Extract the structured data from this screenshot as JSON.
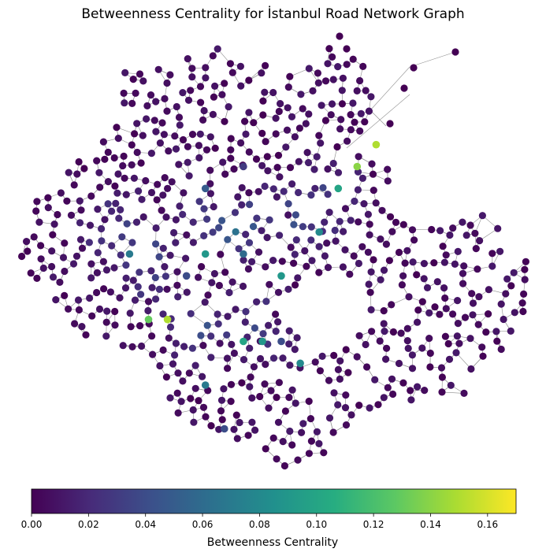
{
  "chart_data": {
    "type": "scatter",
    "title": "Betweenness Centrality for İstanbul Road Network Graph",
    "colorbar": {
      "label": "Betweenness Centrality",
      "range": [
        0,
        0.17
      ],
      "ticks": [
        "0.00",
        "0.02",
        "0.04",
        "0.06",
        "0.08",
        "0.10",
        "0.12",
        "0.14",
        "0.16"
      ],
      "tick_values": [
        0,
        0.02,
        0.04,
        0.06,
        0.08,
        0.1,
        0.12,
        0.14,
        0.16
      ],
      "orientation": "horizontal",
      "placement": "bottom",
      "colormap": "viridis"
    },
    "node_color_low": "#440154",
    "node_color_high": "#fde725",
    "edge_color": "#8c8c8c",
    "axes_visible": false,
    "nodes_note_free": true,
    "nodes": [
      {
        "x": 41.06,
        "y": 29.03,
        "v": 0.14
      },
      {
        "x": 41.07,
        "y": 29.04,
        "v": 0.15
      },
      {
        "x": 41.05,
        "y": 29.02,
        "v": 0.1
      },
      {
        "x": 40.99,
        "y": 28.93,
        "v": 0.15
      },
      {
        "x": 40.99,
        "y": 28.92,
        "v": 0.13
      },
      {
        "x": 40.98,
        "y": 28.97,
        "v": 0.1
      },
      {
        "x": 40.98,
        "y": 28.98,
        "v": 0.09
      },
      {
        "x": 40.97,
        "y": 29.0,
        "v": 0.08
      },
      {
        "x": 41.02,
        "y": 28.95,
        "v": 0.09
      },
      {
        "x": 41.01,
        "y": 28.99,
        "v": 0.09
      },
      {
        "x": 41.03,
        "y": 29.01,
        "v": 0.08
      },
      {
        "x": 41.02,
        "y": 28.91,
        "v": 0.07
      },
      {
        "x": 40.96,
        "y": 28.95,
        "v": 0.07
      },
      {
        "x": 41.02,
        "y": 28.97,
        "v": 0.06
      },
      {
        "x": 41.05,
        "y": 28.95,
        "v": 0.05
      },
      {
        "x": 41.01,
        "y": 28.94,
        "v": 0.04
      },
      {
        "x": 40.94,
        "y": 28.96,
        "v": 0.04
      },
      {
        "x": 40.98,
        "y": 28.99,
        "v": 0.04
      },
      {
        "x": 41.06,
        "y": 28.97,
        "v": 0.03
      }
    ]
  }
}
